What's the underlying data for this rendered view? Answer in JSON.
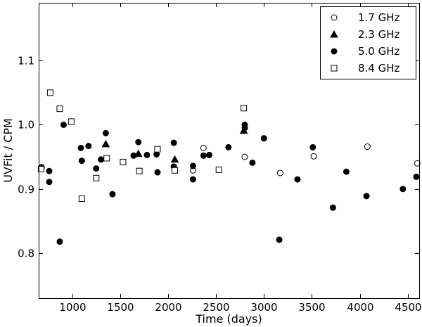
{
  "chart_data": {
    "type": "scatter",
    "xlabel": "Time (days)",
    "ylabel": "UVFit / CPM",
    "xlim": [
      650,
      4620
    ],
    "ylim": [
      0.73,
      1.19
    ],
    "xticks": [
      1000,
      1500,
      2000,
      2500,
      3000,
      3500,
      4000,
      4500
    ],
    "xtick_labels": [
      "1000",
      "1500",
      "2000",
      "2500",
      "3000",
      "3500",
      "4000",
      "4500"
    ],
    "yticks": [
      0.8,
      0.9,
      1.0,
      1.1
    ],
    "ytick_labels": [
      "0.8",
      "0.9",
      "1.0",
      "1.1"
    ],
    "grid": false,
    "legend": "top-right",
    "series": [
      {
        "name": "1.7 GHz",
        "marker": "circle-open",
        "color": "#000000",
        "points": [
          [
            680,
            0.934
          ],
          [
            2260,
            0.929
          ],
          [
            2370,
            0.964
          ],
          [
            2800,
            0.95
          ],
          [
            3170,
            0.925
          ],
          [
            3520,
            0.951
          ],
          [
            4080,
            0.966
          ],
          [
            4600,
            0.94
          ]
        ]
      },
      {
        "name": "2.3 GHz",
        "marker": "triangle-filled",
        "color": "#000000",
        "points": [
          [
            1350,
            0.97
          ],
          [
            1690,
            0.955
          ],
          [
            2070,
            0.946
          ],
          [
            2790,
            0.991
          ]
        ]
      },
      {
        "name": "5.0 GHz",
        "marker": "circle-filled",
        "color": "#000000",
        "points": [
          [
            680,
            0.933
          ],
          [
            760,
            0.928
          ],
          [
            760,
            0.911
          ],
          [
            870,
            0.818
          ],
          [
            910,
            1.0
          ],
          [
            1090,
            0.964
          ],
          [
            1100,
            0.944
          ],
          [
            1170,
            0.967
          ],
          [
            1250,
            0.932
          ],
          [
            1300,
            0.946
          ],
          [
            1350,
            0.987
          ],
          [
            1420,
            0.892
          ],
          [
            1640,
            0.952
          ],
          [
            1690,
            0.973
          ],
          [
            1780,
            0.953
          ],
          [
            1880,
            0.954
          ],
          [
            1890,
            0.926
          ],
          [
            2060,
            0.972
          ],
          [
            2060,
            0.935
          ],
          [
            2260,
            0.936
          ],
          [
            2260,
            0.915
          ],
          [
            2370,
            0.952
          ],
          [
            2430,
            0.953
          ],
          [
            2630,
            0.965
          ],
          [
            2800,
            1.0
          ],
          [
            2800,
            0.995
          ],
          [
            2880,
            0.941
          ],
          [
            3000,
            0.979
          ],
          [
            3160,
            0.821
          ],
          [
            3350,
            0.915
          ],
          [
            3510,
            0.965
          ],
          [
            3720,
            0.871
          ],
          [
            3860,
            0.927
          ],
          [
            4070,
            0.889
          ],
          [
            4450,
            0.9
          ],
          [
            4590,
            0.919
          ]
        ]
      },
      {
        "name": "8.4 GHz",
        "marker": "square-open",
        "color": "#000000",
        "points": [
          [
            675,
            0.931
          ],
          [
            770,
            1.05
          ],
          [
            870,
            1.025
          ],
          [
            990,
            1.005
          ],
          [
            1100,
            0.885
          ],
          [
            1250,
            0.917
          ],
          [
            1360,
            0.948
          ],
          [
            1530,
            0.942
          ],
          [
            1700,
            0.928
          ],
          [
            1890,
            0.962
          ],
          [
            2070,
            0.929
          ],
          [
            2530,
            0.93
          ],
          [
            2790,
            1.026
          ]
        ]
      }
    ]
  }
}
